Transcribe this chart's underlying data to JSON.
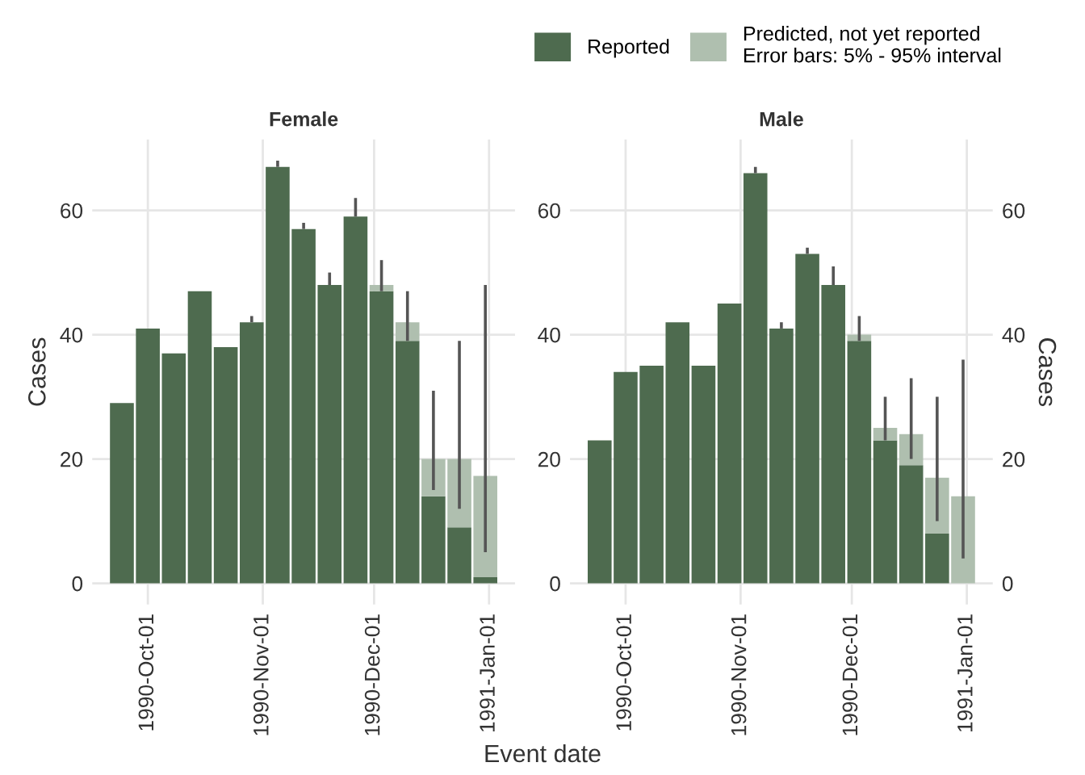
{
  "chart_data": [
    {
      "type": "bar",
      "title": "Female",
      "xlabel": "Event date",
      "ylabel": "Cases",
      "stacked": true,
      "legend": "top right",
      "grid": true,
      "x": [
        "1990-09-24",
        "1990-10-01",
        "1990-10-08",
        "1990-10-15",
        "1990-10-22",
        "1990-10-29",
        "1990-11-05",
        "1990-11-12",
        "1990-11-19",
        "1990-11-26",
        "1990-12-03",
        "1990-12-10",
        "1990-12-17",
        "1990-12-24",
        "1990-12-31"
      ],
      "series": [
        {
          "name": "Reported",
          "color": "#4e6b4f",
          "values": [
            29,
            41,
            37,
            47,
            38,
            42,
            67,
            57,
            48,
            59,
            47,
            39,
            14,
            9,
            1
          ]
        },
        {
          "name": "Predicted, not yet reported\nError bars: 5% - 95% interval",
          "color": "#afbfaf",
          "values": [
            0,
            0,
            0,
            0,
            0,
            0,
            0,
            0,
            0,
            0,
            1,
            3,
            6,
            11,
            16.3
          ],
          "errors": [
            null,
            null,
            null,
            null,
            null,
            [
              42,
              43
            ],
            [
              67,
              68
            ],
            [
              57,
              58
            ],
            [
              48,
              50
            ],
            [
              59,
              62
            ],
            [
              47,
              52
            ],
            [
              39,
              47
            ],
            [
              15,
              31
            ],
            [
              12,
              39
            ],
            [
              5,
              48
            ]
          ]
        }
      ],
      "xlim": [
        "1990-09-16",
        "1991-01-08"
      ],
      "xticks": [
        {
          "value": "1990-10-01",
          "label": "1990-Oct-01"
        },
        {
          "value": "1990-11-01",
          "label": "1990-Nov-01"
        },
        {
          "value": "1990-12-01",
          "label": "1990-Dec-01"
        },
        {
          "value": "1991-01-01",
          "label": "1991-Jan-01"
        }
      ],
      "ylim": [
        -3.4,
        71.4
      ],
      "yticks": [
        0,
        20,
        40,
        60
      ]
    },
    {
      "type": "bar",
      "title": "Male",
      "y2label": "Cases",
      "stacked": true,
      "grid": true,
      "x": [
        "1990-09-24",
        "1990-10-01",
        "1990-10-08",
        "1990-10-15",
        "1990-10-22",
        "1990-10-29",
        "1990-11-05",
        "1990-11-12",
        "1990-11-19",
        "1990-11-26",
        "1990-12-03",
        "1990-12-10",
        "1990-12-17",
        "1990-12-24",
        "1990-12-31"
      ],
      "series": [
        {
          "color": "#4e6b4f",
          "values": [
            23,
            34,
            35,
            42,
            35,
            45,
            66,
            41,
            53,
            48,
            39,
            23,
            19,
            8,
            0
          ]
        },
        {
          "color": "#afbfaf",
          "values": [
            0,
            0,
            0,
            0,
            0,
            0,
            0,
            0,
            0,
            0,
            1,
            2,
            5,
            9,
            14
          ],
          "errors": [
            null,
            null,
            null,
            null,
            null,
            null,
            [
              66,
              67
            ],
            [
              41,
              42
            ],
            [
              53,
              54
            ],
            [
              48,
              51
            ],
            [
              39,
              43
            ],
            [
              23,
              30
            ],
            [
              20,
              33
            ],
            [
              10,
              30
            ],
            [
              4,
              36
            ]
          ]
        }
      ],
      "xlim": [
        "1990-09-16",
        "1991-01-08"
      ],
      "xticks": [
        {
          "value": "1990-10-01",
          "label": "1990-Oct-01"
        },
        {
          "value": "1990-11-01",
          "label": "1990-Nov-01"
        },
        {
          "value": "1990-12-01",
          "label": "1990-Dec-01"
        },
        {
          "value": "1991-01-01",
          "label": "1991-Jan-01"
        }
      ],
      "ylim": [
        -3.4,
        71.4
      ],
      "yticks": [
        0,
        20,
        40,
        60
      ],
      "y2lim": [
        -3.4,
        71.4
      ],
      "y2ticks": [
        0,
        20,
        40,
        60
      ]
    }
  ]
}
